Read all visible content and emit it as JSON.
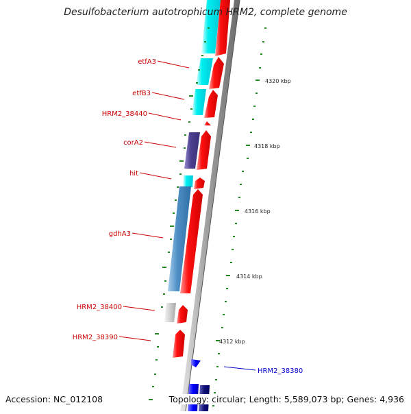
{
  "title": "Desulfobacterium autotrophicum HRM2, complete genome",
  "footer": {
    "accession": "Accession: NC_012108",
    "stats": "Topology: circular; Length: 5,589,073 bp; Genes: 4,936"
  },
  "colors": {
    "forward_gene": "#ee0000",
    "label_red": "#cc0000",
    "label_blue": "#0000cc",
    "backbone": "#808080",
    "tick": "#228822"
  },
  "scale_labels": [
    "4320 kbp",
    "4318 kbp",
    "4316 kbp",
    "4314 kbp",
    "4312 kbp"
  ],
  "gene_labels": [
    {
      "name": "etfA3",
      "color": "#cc0000"
    },
    {
      "name": "etfB3",
      "color": "#cc0000"
    },
    {
      "name": "HRM2_38440",
      "color": "#cc0000"
    },
    {
      "name": "corA2",
      "color": "#cc0000"
    },
    {
      "name": "hit",
      "color": "#cc0000"
    },
    {
      "name": "gdhA3",
      "color": "#cc0000"
    },
    {
      "name": "HRM2_38400",
      "color": "#cc0000"
    },
    {
      "name": "HRM2_38390",
      "color": "#cc0000"
    },
    {
      "name": "HRM2_38380",
      "color": "#0000cc"
    }
  ]
}
